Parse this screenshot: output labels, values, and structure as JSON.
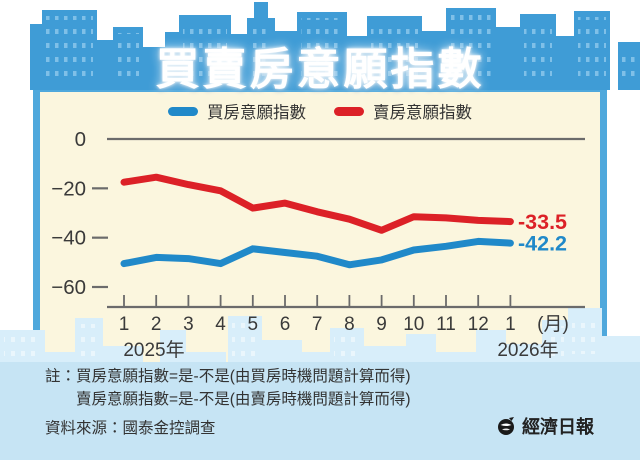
{
  "title": "買賣房意願指數",
  "legend": [
    {
      "label": "買房意願指數",
      "color": "#2089C9"
    },
    {
      "label": "賣房意願指數",
      "color": "#DC2127"
    }
  ],
  "chart_data": {
    "type": "line",
    "title": "買賣房意願指數",
    "x_tick_labels": [
      "1",
      "2",
      "3",
      "4",
      "5",
      "6",
      "7",
      "8",
      "9",
      "10",
      "11",
      "12",
      "1"
    ],
    "x_axis_unit": "(月)",
    "x_period_labels": {
      "start": "2025年",
      "end": "2026年"
    },
    "y_axis": {
      "tick_values": [
        0,
        -20,
        -40,
        -60
      ],
      "tick_labels": [
        "0",
        "−20",
        "−40",
        "−60"
      ],
      "range": [
        -68,
        0
      ],
      "grid": false
    },
    "legend_position": "top",
    "series": [
      {
        "name": "買房意願指數",
        "color": "#2089C9",
        "values": [
          -50.5,
          -48,
          -48.5,
          -50.5,
          -44.5,
          -46,
          -47.5,
          -51,
          -49,
          -45,
          -43.5,
          -41.5,
          -42.2
        ],
        "end_label": "-42.2"
      },
      {
        "name": "賣房意願指數",
        "color": "#DC2127",
        "values": [
          -17.5,
          -15.5,
          -18.5,
          -21,
          -28,
          -26,
          -29.5,
          -32.5,
          -37,
          -31.5,
          -32,
          -33,
          -33.5
        ],
        "end_label": "-33.5"
      }
    ]
  },
  "notes": {
    "line1": "註：買房意願指數=是-不是(由買房時機問題計算而得)",
    "line2": "賣房意願指數=是-不是(由賣房時機問題計算而得)",
    "source": "資料來源：國泰金控調查"
  },
  "publisher": {
    "name": "經濟日報"
  },
  "colors": {
    "skyline_top": "#3F9CD6",
    "skyline_windows": "#7FC0E8",
    "panel_bg": "#FBF6DE",
    "panel_border": "#4FA8DC",
    "bottom_bg": "#C6E4F4",
    "bottom_buildings": "#D8EEFA",
    "axis": "#6B6B6B",
    "text": "#3A3A3A"
  }
}
